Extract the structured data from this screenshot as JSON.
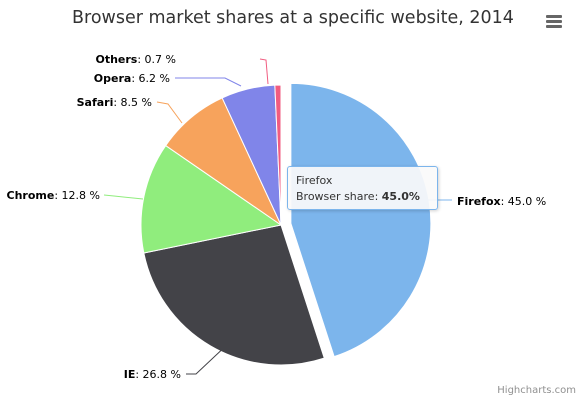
{
  "chart_data": {
    "type": "pie",
    "title": "Browser market shares at a specific website, 2014",
    "series_name": "Browser share",
    "unit": " %",
    "slices": [
      {
        "name": "Firefox",
        "value": 45.0,
        "color": "#7cb5ec",
        "sliced": true
      },
      {
        "name": "IE",
        "value": 26.8,
        "color": "#434348",
        "sliced": false
      },
      {
        "name": "Chrome",
        "value": 12.8,
        "color": "#90ed7d",
        "sliced": false
      },
      {
        "name": "Safari",
        "value": 8.5,
        "color": "#f7a35c",
        "sliced": false
      },
      {
        "name": "Opera",
        "value": 6.2,
        "color": "#8085e9",
        "sliced": false
      },
      {
        "name": "Others",
        "value": 0.7,
        "color": "#f15c80",
        "sliced": false
      }
    ],
    "tooltip": {
      "category": "Firefox",
      "series_label": "Browser share: ",
      "value_text": "45.0%"
    }
  },
  "credits": "Highcharts.com",
  "menu_icon": "hamburger-menu-icon"
}
